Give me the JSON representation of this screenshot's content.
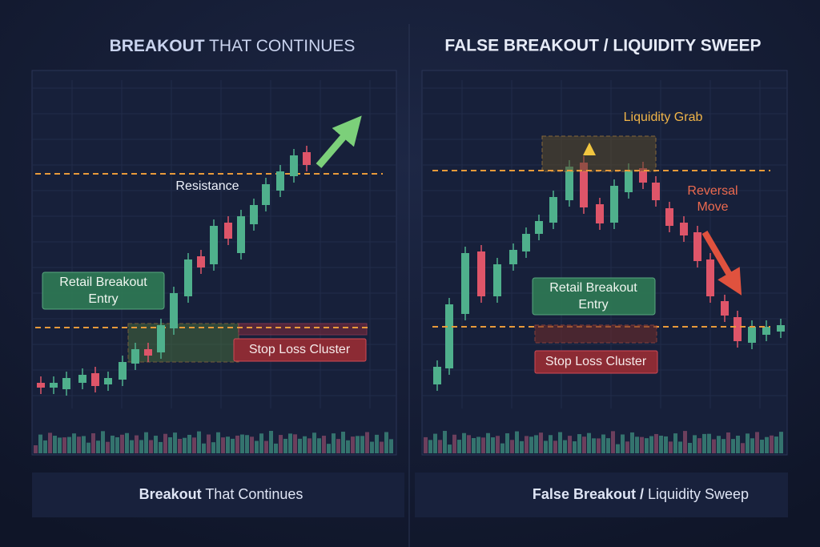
{
  "left": {
    "title": {
      "bold": "BREAKOUT",
      "rest": " THAT CONTINUES"
    },
    "resistance": "Resistance",
    "entry": [
      "Retail Breakout",
      "Entry"
    ],
    "stop": "Stop Loss Cluster",
    "caption": {
      "bold": "Breakout",
      "rest": " That Continues"
    }
  },
  "right": {
    "title": "FALSE BREAKOUT / LIQUIDITY SWEEP",
    "grab": "Liquidity Grab",
    "reversal": [
      "Reversal",
      "Move"
    ],
    "entry": [
      "Retail Breakout",
      "Entry"
    ],
    "stop": "Stop Loss Cluster",
    "caption": {
      "bold": "False Breakout /",
      "rest": " Liquidity Sweep"
    }
  }
}
